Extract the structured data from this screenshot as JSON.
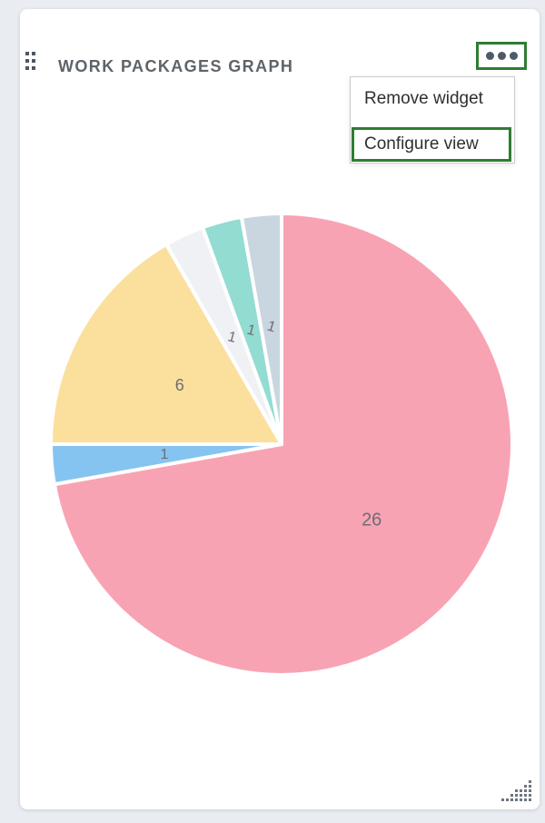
{
  "page": {
    "background_color": "#e9edf1"
  },
  "widget": {
    "title": "WORK PACKAGES GRAPH",
    "title_color": "#5e6469"
  },
  "icons": {
    "drag_handle": "drag-grip-icon",
    "menu_button": "ellipsis-icon",
    "resize_handle": "resize-grip-icon"
  },
  "menu": {
    "items": [
      {
        "label": "Remove widget"
      },
      {
        "label": "Configure view"
      }
    ]
  },
  "annotation": {
    "highlight_color": "#2e7d32",
    "highlighted_elements": [
      "menu-button",
      "menu-item-configure-view"
    ]
  },
  "chart_data": {
    "type": "pie",
    "title": "WORK PACKAGES GRAPH",
    "total": 36,
    "start_angle_deg": 0,
    "direction": "clockwise",
    "legend": "none",
    "slices": [
      {
        "label": "26",
        "value": 26,
        "color": "#f8a3b4"
      },
      {
        "label": "1",
        "value": 1,
        "color": "#85c4f1"
      },
      {
        "label": "6",
        "value": 6,
        "color": "#fbdf9d"
      },
      {
        "label": "1",
        "value": 1,
        "color": "#eff1f4"
      },
      {
        "label": "1",
        "value": 1,
        "color": "#92dcd2"
      },
      {
        "label": "1",
        "value": 1,
        "color": "#c9d6df"
      }
    ],
    "label_color": "#6d6d72",
    "label_radius_fraction": 0.51,
    "label_rotations_deg": [
      0,
      0,
      0,
      15,
      15,
      17
    ],
    "slice_gap_stroke": {
      "color": "#ffffff",
      "width": 4
    }
  }
}
